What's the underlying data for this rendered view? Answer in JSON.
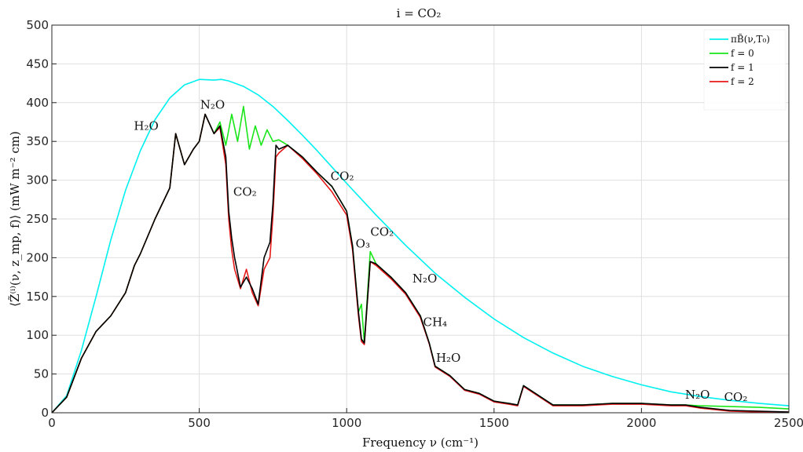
{
  "chart_data": {
    "type": "line",
    "title": "i =  CO₂",
    "xlabel": "Frequency ν (cm⁻¹)",
    "ylabel": "⟨Z̃⁽ⁱ⁾(ν, z_mp, f)⟩ (mW m⁻² cm)",
    "xlim": [
      0,
      2500
    ],
    "ylim": [
      0,
      500
    ],
    "xticks": [
      "0",
      "500",
      "1000",
      "1500",
      "2000",
      "2500"
    ],
    "yticks": [
      "0",
      "50",
      "100",
      "150",
      "200",
      "250",
      "300",
      "350",
      "400",
      "450",
      "500"
    ],
    "grid": true,
    "legend_position": "top-right",
    "series": [
      {
        "name": "πB̃(ν,T₀)",
        "color": "#00f0f0",
        "x": [
          0,
          50,
          100,
          150,
          200,
          250,
          300,
          350,
          400,
          450,
          500,
          550,
          575,
          600,
          650,
          700,
          750,
          800,
          850,
          900,
          950,
          1000,
          1100,
          1200,
          1300,
          1400,
          1500,
          1600,
          1700,
          1800,
          1900,
          2000,
          2100,
          2200,
          2300,
          2400,
          2500
        ],
        "y": [
          0,
          22,
          80,
          150,
          223,
          287,
          338,
          378,
          406,
          423,
          430,
          429,
          430,
          428,
          421,
          410,
          395,
          377,
          358,
          338,
          317,
          296,
          255,
          216,
          180,
          149,
          121,
          97,
          77,
          60,
          47,
          36,
          27,
          21,
          16,
          12,
          9
        ]
      },
      {
        "name": "f = 0",
        "color": "#19e619",
        "x": [
          0,
          50,
          100,
          150,
          200,
          250,
          280,
          300,
          350,
          400,
          420,
          450,
          480,
          500,
          520,
          550,
          570,
          590,
          610,
          630,
          650,
          670,
          690,
          710,
          730,
          750,
          770,
          800,
          850,
          900,
          950,
          1000,
          1020,
          1040,
          1050,
          1060,
          1080,
          1100,
          1150,
          1200,
          1250,
          1280,
          1300,
          1350,
          1400,
          1450,
          1500,
          1550,
          1580,
          1600,
          1700,
          1800,
          1900,
          2000,
          2100,
          2150,
          2200,
          2300,
          2400,
          2500
        ],
        "y": [
          0,
          20,
          70,
          105,
          125,
          155,
          190,
          205,
          250,
          290,
          360,
          320,
          340,
          350,
          385,
          360,
          375,
          345,
          385,
          350,
          395,
          340,
          370,
          345,
          365,
          350,
          352,
          345,
          330,
          310,
          292,
          260,
          215,
          130,
          140,
          90,
          208,
          192,
          175,
          155,
          125,
          90,
          60,
          48,
          30,
          25,
          15,
          12,
          10,
          35,
          10,
          10,
          12,
          12,
          10,
          10,
          9,
          8,
          7,
          5
        ]
      },
      {
        "name": "f = 1",
        "color": "#000000",
        "x": [
          0,
          50,
          100,
          150,
          200,
          250,
          280,
          300,
          350,
          400,
          420,
          450,
          480,
          500,
          520,
          550,
          570,
          590,
          600,
          610,
          620,
          640,
          660,
          680,
          700,
          720,
          740,
          750,
          760,
          770,
          800,
          850,
          900,
          950,
          1000,
          1020,
          1040,
          1050,
          1060,
          1080,
          1100,
          1150,
          1200,
          1250,
          1280,
          1300,
          1350,
          1400,
          1450,
          1500,
          1550,
          1580,
          1600,
          1700,
          1800,
          1900,
          2000,
          2100,
          2150,
          2200,
          2300,
          2400,
          2500
        ],
        "y": [
          0,
          20,
          70,
          105,
          125,
          155,
          190,
          205,
          250,
          290,
          360,
          320,
          340,
          350,
          385,
          360,
          370,
          330,
          260,
          225,
          200,
          162,
          175,
          160,
          140,
          200,
          220,
          270,
          345,
          340,
          345,
          330,
          310,
          292,
          260,
          215,
          130,
          95,
          90,
          195,
          192,
          175,
          155,
          125,
          90,
          60,
          48,
          30,
          25,
          15,
          12,
          10,
          35,
          10,
          10,
          12,
          12,
          10,
          10,
          7,
          3,
          2,
          1
        ]
      },
      {
        "name": "f = 2",
        "color": "#e61919",
        "x": [
          0,
          50,
          100,
          150,
          200,
          250,
          280,
          300,
          350,
          400,
          420,
          450,
          480,
          500,
          520,
          550,
          570,
          590,
          600,
          610,
          620,
          640,
          660,
          680,
          700,
          720,
          740,
          750,
          760,
          770,
          800,
          850,
          900,
          950,
          1000,
          1020,
          1040,
          1050,
          1060,
          1080,
          1100,
          1150,
          1200,
          1250,
          1280,
          1300,
          1350,
          1400,
          1450,
          1500,
          1550,
          1580,
          1600,
          1700,
          1800,
          1900,
          2000,
          2100,
          2150,
          2200,
          2300,
          2400,
          2500
        ],
        "y": [
          0,
          20,
          70,
          105,
          125,
          155,
          190,
          205,
          250,
          290,
          360,
          320,
          340,
          350,
          385,
          360,
          368,
          320,
          250,
          210,
          185,
          160,
          185,
          155,
          138,
          185,
          200,
          255,
          330,
          335,
          345,
          328,
          308,
          285,
          255,
          210,
          125,
          92,
          88,
          195,
          190,
          173,
          153,
          123,
          89,
          59,
          47,
          29,
          24,
          14,
          11,
          9,
          34,
          9,
          9,
          11,
          11,
          9,
          9,
          6,
          2,
          1,
          1
        ]
      }
    ],
    "annotations": [
      {
        "text": "H₂O",
        "x": 320,
        "y": 365
      },
      {
        "text": "N₂O",
        "x": 545,
        "y": 392
      },
      {
        "text": "CO₂",
        "x": 655,
        "y": 280
      },
      {
        "text": "CO₂",
        "x": 985,
        "y": 300
      },
      {
        "text": "O₃",
        "x": 1055,
        "y": 213
      },
      {
        "text": "CO₂",
        "x": 1120,
        "y": 228
      },
      {
        "text": "N₂O",
        "x": 1265,
        "y": 168
      },
      {
        "text": "CH₄",
        "x": 1300,
        "y": 112
      },
      {
        "text": "H₂O",
        "x": 1345,
        "y": 66
      },
      {
        "text": "N₂O",
        "x": 2190,
        "y": 18
      },
      {
        "text": "CO₂",
        "x": 2320,
        "y": 15
      }
    ]
  }
}
